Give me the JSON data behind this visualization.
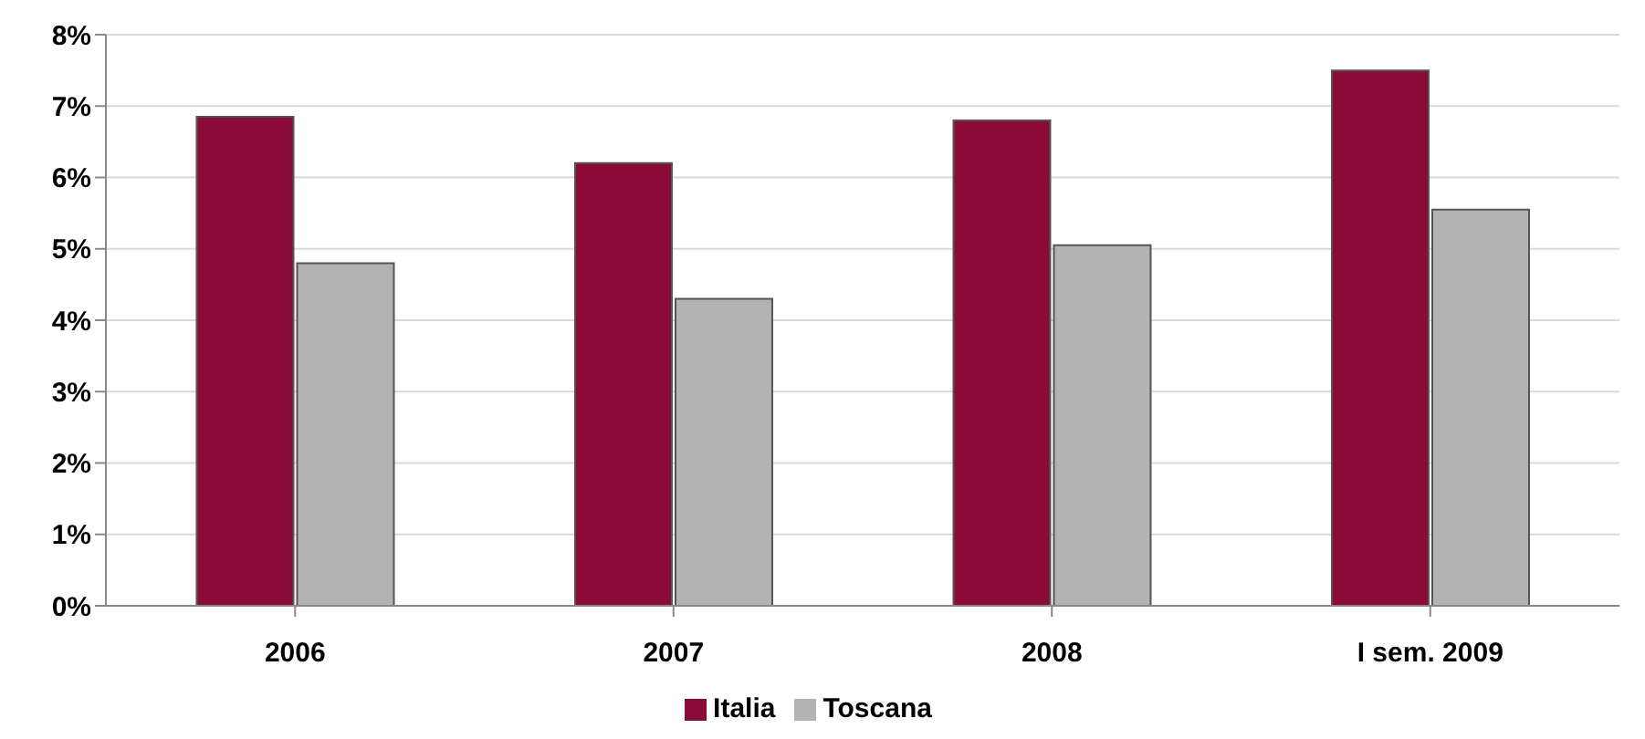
{
  "chart_data": {
    "type": "bar",
    "categories": [
      "2006",
      "2007",
      "2008",
      "I sem. 2009"
    ],
    "series": [
      {
        "name": "Italia",
        "color": "#8b0a38",
        "values": [
          6.85,
          6.2,
          6.8,
          7.5
        ]
      },
      {
        "name": "Toscana",
        "color": "#b3b3b3",
        "values": [
          4.8,
          4.3,
          5.05,
          5.55
        ]
      }
    ],
    "ylim": [
      0,
      8
    ],
    "yticks": [
      {
        "value": 0,
        "label": "0%"
      },
      {
        "value": 1,
        "label": "1%"
      },
      {
        "value": 2,
        "label": "2%"
      },
      {
        "value": 3,
        "label": "3%"
      },
      {
        "value": 4,
        "label": "4%"
      },
      {
        "value": 5,
        "label": "5%"
      },
      {
        "value": 6,
        "label": "6%"
      },
      {
        "value": 7,
        "label": "7%"
      },
      {
        "value": 8,
        "label": "8%"
      }
    ],
    "grid": "y",
    "legend": "bottom"
  }
}
